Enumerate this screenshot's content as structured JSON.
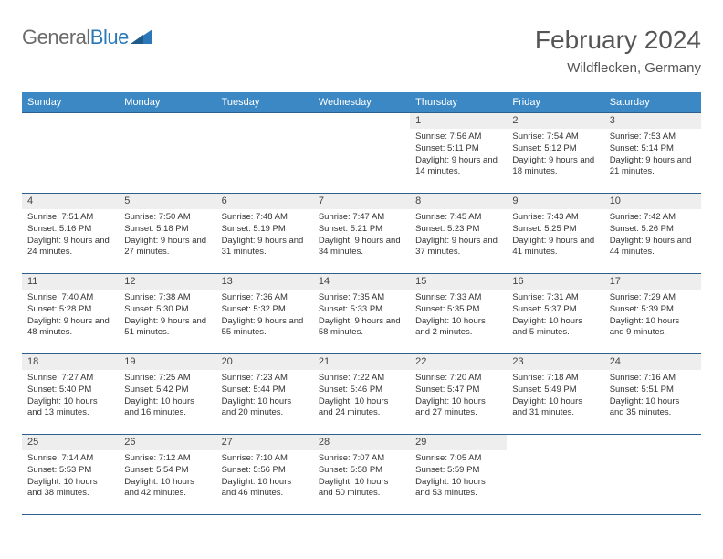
{
  "logo": {
    "text_general": "General",
    "text_blue": "Blue",
    "triangle_color": "#2a78b8"
  },
  "title": "February 2024",
  "location": "Wildflecken, Germany",
  "colors": {
    "header_bg": "#3b88c4",
    "header_text": "#ffffff",
    "row_border": "#2f5f8f",
    "daynum_bg": "#eeeeee",
    "body_text": "#333333",
    "page_bg": "#ffffff"
  },
  "day_headers": [
    "Sunday",
    "Monday",
    "Tuesday",
    "Wednesday",
    "Thursday",
    "Friday",
    "Saturday"
  ],
  "weeks": [
    [
      null,
      null,
      null,
      null,
      {
        "n": "1",
        "sunrise": "7:56 AM",
        "sunset": "5:11 PM",
        "daylight": "9 hours and 14 minutes."
      },
      {
        "n": "2",
        "sunrise": "7:54 AM",
        "sunset": "5:12 PM",
        "daylight": "9 hours and 18 minutes."
      },
      {
        "n": "3",
        "sunrise": "7:53 AM",
        "sunset": "5:14 PM",
        "daylight": "9 hours and 21 minutes."
      }
    ],
    [
      {
        "n": "4",
        "sunrise": "7:51 AM",
        "sunset": "5:16 PM",
        "daylight": "9 hours and 24 minutes."
      },
      {
        "n": "5",
        "sunrise": "7:50 AM",
        "sunset": "5:18 PM",
        "daylight": "9 hours and 27 minutes."
      },
      {
        "n": "6",
        "sunrise": "7:48 AM",
        "sunset": "5:19 PM",
        "daylight": "9 hours and 31 minutes."
      },
      {
        "n": "7",
        "sunrise": "7:47 AM",
        "sunset": "5:21 PM",
        "daylight": "9 hours and 34 minutes."
      },
      {
        "n": "8",
        "sunrise": "7:45 AM",
        "sunset": "5:23 PM",
        "daylight": "9 hours and 37 minutes."
      },
      {
        "n": "9",
        "sunrise": "7:43 AM",
        "sunset": "5:25 PM",
        "daylight": "9 hours and 41 minutes."
      },
      {
        "n": "10",
        "sunrise": "7:42 AM",
        "sunset": "5:26 PM",
        "daylight": "9 hours and 44 minutes."
      }
    ],
    [
      {
        "n": "11",
        "sunrise": "7:40 AM",
        "sunset": "5:28 PM",
        "daylight": "9 hours and 48 minutes."
      },
      {
        "n": "12",
        "sunrise": "7:38 AM",
        "sunset": "5:30 PM",
        "daylight": "9 hours and 51 minutes."
      },
      {
        "n": "13",
        "sunrise": "7:36 AM",
        "sunset": "5:32 PM",
        "daylight": "9 hours and 55 minutes."
      },
      {
        "n": "14",
        "sunrise": "7:35 AM",
        "sunset": "5:33 PM",
        "daylight": "9 hours and 58 minutes."
      },
      {
        "n": "15",
        "sunrise": "7:33 AM",
        "sunset": "5:35 PM",
        "daylight": "10 hours and 2 minutes."
      },
      {
        "n": "16",
        "sunrise": "7:31 AM",
        "sunset": "5:37 PM",
        "daylight": "10 hours and 5 minutes."
      },
      {
        "n": "17",
        "sunrise": "7:29 AM",
        "sunset": "5:39 PM",
        "daylight": "10 hours and 9 minutes."
      }
    ],
    [
      {
        "n": "18",
        "sunrise": "7:27 AM",
        "sunset": "5:40 PM",
        "daylight": "10 hours and 13 minutes."
      },
      {
        "n": "19",
        "sunrise": "7:25 AM",
        "sunset": "5:42 PM",
        "daylight": "10 hours and 16 minutes."
      },
      {
        "n": "20",
        "sunrise": "7:23 AM",
        "sunset": "5:44 PM",
        "daylight": "10 hours and 20 minutes."
      },
      {
        "n": "21",
        "sunrise": "7:22 AM",
        "sunset": "5:46 PM",
        "daylight": "10 hours and 24 minutes."
      },
      {
        "n": "22",
        "sunrise": "7:20 AM",
        "sunset": "5:47 PM",
        "daylight": "10 hours and 27 minutes."
      },
      {
        "n": "23",
        "sunrise": "7:18 AM",
        "sunset": "5:49 PM",
        "daylight": "10 hours and 31 minutes."
      },
      {
        "n": "24",
        "sunrise": "7:16 AM",
        "sunset": "5:51 PM",
        "daylight": "10 hours and 35 minutes."
      }
    ],
    [
      {
        "n": "25",
        "sunrise": "7:14 AM",
        "sunset": "5:53 PM",
        "daylight": "10 hours and 38 minutes."
      },
      {
        "n": "26",
        "sunrise": "7:12 AM",
        "sunset": "5:54 PM",
        "daylight": "10 hours and 42 minutes."
      },
      {
        "n": "27",
        "sunrise": "7:10 AM",
        "sunset": "5:56 PM",
        "daylight": "10 hours and 46 minutes."
      },
      {
        "n": "28",
        "sunrise": "7:07 AM",
        "sunset": "5:58 PM",
        "daylight": "10 hours and 50 minutes."
      },
      {
        "n": "29",
        "sunrise": "7:05 AM",
        "sunset": "5:59 PM",
        "daylight": "10 hours and 53 minutes."
      },
      null,
      null
    ]
  ],
  "labels": {
    "sunrise": "Sunrise: ",
    "sunset": "Sunset: ",
    "daylight": "Daylight: "
  }
}
